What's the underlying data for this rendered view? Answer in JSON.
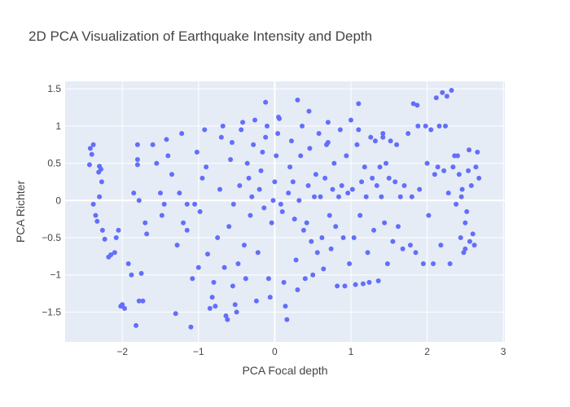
{
  "chart_data": {
    "type": "scatter",
    "title": "2D PCA Visualization of Earthquake Intensity and Depth",
    "xlabel": "PCA Focal depth",
    "ylabel": "PCA Richter",
    "xlim": [
      -2.75,
      3.02
    ],
    "ylim": [
      -1.9,
      1.6
    ],
    "xticks": [
      -2,
      -1,
      0,
      1,
      2,
      3
    ],
    "xtick_labels": [
      "−2",
      "−1",
      "0",
      "1",
      "2",
      "3"
    ],
    "yticks": [
      -1.5,
      -1,
      -0.5,
      0,
      0.5,
      1,
      1.5
    ],
    "ytick_labels": [
      "−1.5",
      "−1",
      "−0.5",
      "0",
      "0.5",
      "1",
      "1.5"
    ],
    "grid": true,
    "marker_color": "#636efa",
    "background_color": "#e5ecf6",
    "series": [
      {
        "values": [
          [
            -2.42,
            0.7
          ],
          [
            -2.38,
            0.75
          ],
          [
            -2.4,
            0.62
          ],
          [
            -2.43,
            0.48
          ],
          [
            -2.3,
            0.46
          ],
          [
            -2.31,
            0.38
          ],
          [
            -2.28,
            0.42
          ],
          [
            -2.27,
            0.25
          ],
          [
            -2.3,
            0.05
          ],
          [
            -2.38,
            -0.05
          ],
          [
            -2.35,
            -0.2
          ],
          [
            -2.33,
            -0.28
          ],
          [
            -2.26,
            -0.4
          ],
          [
            -2.23,
            -0.52
          ],
          [
            -2.18,
            -0.76
          ],
          [
            -2.15,
            -0.73
          ],
          [
            -2.1,
            -0.7
          ],
          [
            -2.08,
            -0.5
          ],
          [
            -2.05,
            -0.4
          ],
          [
            -2.02,
            -1.42
          ],
          [
            -2.0,
            -1.4
          ],
          [
            -1.97,
            -1.45
          ],
          [
            -1.92,
            -0.85
          ],
          [
            -1.88,
            -1.0
          ],
          [
            -1.82,
            -1.68
          ],
          [
            -1.78,
            -1.35
          ],
          [
            -1.75,
            -0.98
          ],
          [
            -1.73,
            -1.35
          ],
          [
            -1.8,
            0.75
          ],
          [
            -1.8,
            0.55
          ],
          [
            -1.8,
            0.48
          ],
          [
            -1.85,
            0.1
          ],
          [
            -1.78,
            0.0
          ],
          [
            -1.7,
            -0.3
          ],
          [
            -1.68,
            -0.45
          ],
          [
            -1.6,
            0.75
          ],
          [
            -1.55,
            0.5
          ],
          [
            -1.5,
            0.1
          ],
          [
            -1.48,
            -0.2
          ],
          [
            -1.45,
            -0.05
          ],
          [
            -1.42,
            0.82
          ],
          [
            -1.4,
            0.6
          ],
          [
            -1.35,
            0.35
          ],
          [
            -1.3,
            -1.52
          ],
          [
            -1.28,
            -0.6
          ],
          [
            -1.25,
            0.1
          ],
          [
            -1.22,
            0.9
          ],
          [
            -1.2,
            -0.3
          ],
          [
            -1.15,
            -0.4
          ],
          [
            -1.1,
            -1.7
          ],
          [
            -1.08,
            -1.05
          ],
          [
            -1.05,
            -0.05
          ],
          [
            -1.02,
            0.65
          ],
          [
            -1.0,
            -0.9
          ],
          [
            -0.98,
            -0.15
          ],
          [
            -0.95,
            0.3
          ],
          [
            -0.92,
            0.95
          ],
          [
            -0.9,
            0.45
          ],
          [
            -0.88,
            -0.72
          ],
          [
            -0.85,
            -1.45
          ],
          [
            -0.82,
            -1.3
          ],
          [
            -0.8,
            -1.1
          ],
          [
            -0.78,
            -1.42
          ],
          [
            -0.75,
            -0.5
          ],
          [
            -0.72,
            0.15
          ],
          [
            -0.7,
            0.85
          ],
          [
            -0.68,
            1.0
          ],
          [
            -0.66,
            -0.9
          ],
          [
            -0.64,
            -1.55
          ],
          [
            -0.62,
            -1.6
          ],
          [
            -0.6,
            -0.35
          ],
          [
            -0.58,
            0.55
          ],
          [
            -0.56,
            0.78
          ],
          [
            -0.54,
            -0.05
          ],
          [
            -0.52,
            -1.4
          ],
          [
            -0.5,
            -1.5
          ],
          [
            -0.48,
            -0.85
          ],
          [
            -0.46,
            0.2
          ],
          [
            -0.44,
            0.95
          ],
          [
            -0.42,
            1.05
          ],
          [
            -0.4,
            -0.6
          ],
          [
            -0.38,
            -1.05
          ],
          [
            -0.36,
            0.5
          ],
          [
            -0.34,
            0.3
          ],
          [
            -0.32,
            -0.2
          ],
          [
            -0.3,
            0.05
          ],
          [
            -0.28,
            0.75
          ],
          [
            -0.26,
            1.08
          ],
          [
            -0.24,
            -1.35
          ],
          [
            -0.22,
            -0.7
          ],
          [
            -0.2,
            0.15
          ],
          [
            -0.18,
            0.4
          ],
          [
            -0.16,
            0.65
          ],
          [
            -0.14,
            -0.1
          ],
          [
            -0.12,
            0.85
          ],
          [
            -0.1,
            1.0
          ],
          [
            -0.08,
            -1.05
          ],
          [
            -0.06,
            -1.3
          ],
          [
            -0.04,
            -0.3
          ],
          [
            -0.02,
            0.0
          ],
          [
            0.0,
            0.25
          ],
          [
            0.02,
            0.6
          ],
          [
            0.04,
            0.9
          ],
          [
            0.06,
            1.1
          ],
          [
            0.08,
            -0.05
          ],
          [
            0.1,
            -0.15
          ],
          [
            0.12,
            -1.1
          ],
          [
            0.14,
            -1.42
          ],
          [
            0.16,
            -1.6
          ],
          [
            0.18,
            0.1
          ],
          [
            0.2,
            0.45
          ],
          [
            0.22,
            0.8
          ],
          [
            0.24,
            0.25
          ],
          [
            0.26,
            -0.25
          ],
          [
            0.28,
            -0.8
          ],
          [
            0.3,
            -1.2
          ],
          [
            0.32,
            0.0
          ],
          [
            0.34,
            0.6
          ],
          [
            0.36,
            1.0
          ],
          [
            0.38,
            -0.4
          ],
          [
            0.4,
            -1.05
          ],
          [
            0.42,
            -0.3
          ],
          [
            0.44,
            0.2
          ],
          [
            0.46,
            0.7
          ],
          [
            0.48,
            -0.55
          ],
          [
            0.5,
            -1.0
          ],
          [
            0.52,
            0.05
          ],
          [
            0.54,
            0.35
          ],
          [
            0.56,
            -0.7
          ],
          [
            0.58,
            0.9
          ],
          [
            0.6,
            0.05
          ],
          [
            0.62,
            -0.5
          ],
          [
            0.64,
            -0.92
          ],
          [
            0.66,
            0.3
          ],
          [
            0.68,
            0.75
          ],
          [
            0.7,
            1.05
          ],
          [
            0.72,
            -0.2
          ],
          [
            0.74,
            -0.65
          ],
          [
            0.76,
            0.15
          ],
          [
            0.78,
            0.5
          ],
          [
            0.8,
            -0.35
          ],
          [
            0.82,
            -1.15
          ],
          [
            0.84,
            0.05
          ],
          [
            0.86,
            0.95
          ],
          [
            0.88,
            0.2
          ],
          [
            0.9,
            -0.5
          ],
          [
            0.92,
            -1.15
          ],
          [
            0.94,
            0.6
          ],
          [
            0.96,
            0.1
          ],
          [
            0.98,
            -0.85
          ],
          [
            1.0,
            1.08
          ],
          [
            1.02,
            0.15
          ],
          [
            1.04,
            -0.5
          ],
          [
            1.06,
            -1.13
          ],
          [
            1.08,
            0.75
          ],
          [
            1.1,
            0.95
          ],
          [
            1.12,
            -0.2
          ],
          [
            1.14,
            0.25
          ],
          [
            1.16,
            -1.12
          ],
          [
            1.18,
            0.45
          ],
          [
            1.2,
            0.05
          ],
          [
            1.22,
            -0.7
          ],
          [
            1.24,
            -1.1
          ],
          [
            1.26,
            0.85
          ],
          [
            1.28,
            0.3
          ],
          [
            1.3,
            -0.4
          ],
          [
            1.32,
            0.8
          ],
          [
            1.34,
            0.2
          ],
          [
            1.36,
            -1.08
          ],
          [
            1.38,
            0.45
          ],
          [
            1.4,
            0.05
          ],
          [
            1.42,
            0.85
          ],
          [
            1.44,
            -0.3
          ],
          [
            1.46,
            0.5
          ],
          [
            1.48,
            -0.85
          ],
          [
            1.5,
            0.3
          ],
          [
            1.52,
            0.8
          ],
          [
            1.55,
            -0.55
          ],
          [
            1.58,
            0.25
          ],
          [
            1.6,
            0.75
          ],
          [
            1.62,
            -0.35
          ],
          [
            1.65,
            0.05
          ],
          [
            1.68,
            -0.65
          ],
          [
            1.7,
            0.2
          ],
          [
            1.75,
            0.9
          ],
          [
            1.78,
            -0.6
          ],
          [
            1.8,
            0.05
          ],
          [
            1.82,
            1.3
          ],
          [
            1.85,
            -0.7
          ],
          [
            1.88,
            1.0
          ],
          [
            1.9,
            0.15
          ],
          [
            1.95,
            -0.85
          ],
          [
            1.98,
            1.0
          ],
          [
            2.0,
            0.5
          ],
          [
            2.02,
            -0.2
          ],
          [
            2.05,
            0.95
          ],
          [
            2.08,
            -0.85
          ],
          [
            2.1,
            0.35
          ],
          [
            2.12,
            1.38
          ],
          [
            2.14,
            0.45
          ],
          [
            2.16,
            1.0
          ],
          [
            2.18,
            -0.6
          ],
          [
            2.2,
            1.45
          ],
          [
            2.22,
            0.4
          ],
          [
            2.24,
            1.0
          ],
          [
            2.26,
            1.4
          ],
          [
            2.28,
            0.1
          ],
          [
            2.3,
            -0.85
          ],
          [
            2.32,
            1.48
          ],
          [
            2.34,
            0.45
          ],
          [
            2.36,
            0.6
          ],
          [
            2.38,
            -0.05
          ],
          [
            2.4,
            0.6
          ],
          [
            2.42,
            0.35
          ],
          [
            2.44,
            -0.5
          ],
          [
            2.46,
            0.15
          ],
          [
            2.48,
            -0.7
          ],
          [
            2.5,
            -0.3
          ],
          [
            2.52,
            -0.15
          ],
          [
            2.54,
            0.4
          ],
          [
            2.56,
            -0.55
          ],
          [
            2.58,
            0.2
          ],
          [
            2.6,
            -0.45
          ],
          [
            2.62,
            -0.6
          ],
          [
            2.64,
            0.45
          ],
          [
            2.66,
            0.65
          ],
          [
            2.68,
            0.3
          ],
          [
            2.55,
            0.68
          ],
          [
            2.5,
            -0.65
          ],
          [
            2.45,
            0.05
          ],
          [
            1.87,
            1.28
          ],
          [
            1.42,
            0.9
          ],
          [
            0.45,
            1.2
          ],
          [
            0.3,
            1.35
          ],
          [
            -0.12,
            1.32
          ],
          [
            0.05,
            1.12
          ],
          [
            1.1,
            1.3
          ],
          [
            -1.15,
            -0.05
          ],
          [
            -0.55,
            -1.15
          ],
          [
            0.7,
            0.78
          ]
        ]
      }
    ]
  }
}
